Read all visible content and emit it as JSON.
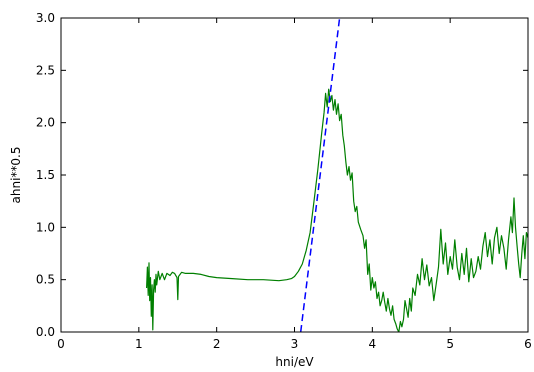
{
  "chart_data": {
    "type": "line",
    "title": "",
    "xlabel": "hni/eV",
    "ylabel": "ahni**0.5",
    "xlim": [
      0,
      6
    ],
    "ylim": [
      0,
      3.0
    ],
    "x_ticks": [
      "0",
      "1",
      "2",
      "3",
      "4",
      "5",
      "6"
    ],
    "y_ticks": [
      "0.0",
      "0.5",
      "1.0",
      "1.5",
      "2.0",
      "2.5",
      "3.0"
    ],
    "grid": false,
    "legend": "none",
    "series": [
      {
        "style": "solid",
        "color": "#007f00",
        "points": [
          [
            1.1,
            0.42
          ],
          [
            1.11,
            0.62
          ],
          [
            1.12,
            0.35
          ],
          [
            1.13,
            0.66
          ],
          [
            1.14,
            0.3
          ],
          [
            1.15,
            0.52
          ],
          [
            1.16,
            0.15
          ],
          [
            1.17,
            0.45
          ],
          [
            1.18,
            0.02
          ],
          [
            1.19,
            0.4
          ],
          [
            1.2,
            0.5
          ],
          [
            1.21,
            0.38
          ],
          [
            1.22,
            0.55
          ],
          [
            1.23,
            0.45
          ],
          [
            1.25,
            0.58
          ],
          [
            1.27,
            0.5
          ],
          [
            1.3,
            0.56
          ],
          [
            1.33,
            0.5
          ],
          [
            1.36,
            0.56
          ],
          [
            1.4,
            0.54
          ],
          [
            1.43,
            0.57
          ],
          [
            1.46,
            0.56
          ],
          [
            1.49,
            0.52
          ],
          [
            1.5,
            0.31
          ],
          [
            1.51,
            0.53
          ],
          [
            1.55,
            0.57
          ],
          [
            1.6,
            0.56
          ],
          [
            1.7,
            0.56
          ],
          [
            1.8,
            0.55
          ],
          [
            1.9,
            0.53
          ],
          [
            2.0,
            0.52
          ],
          [
            2.2,
            0.51
          ],
          [
            2.4,
            0.5
          ],
          [
            2.6,
            0.5
          ],
          [
            2.8,
            0.49
          ],
          [
            2.9,
            0.5
          ],
          [
            2.96,
            0.51
          ],
          [
            3.0,
            0.53
          ],
          [
            3.05,
            0.58
          ],
          [
            3.1,
            0.65
          ],
          [
            3.15,
            0.78
          ],
          [
            3.2,
            0.95
          ],
          [
            3.25,
            1.25
          ],
          [
            3.3,
            1.55
          ],
          [
            3.35,
            1.9
          ],
          [
            3.38,
            2.1
          ],
          [
            3.4,
            2.28
          ],
          [
            3.42,
            2.15
          ],
          [
            3.44,
            2.32
          ],
          [
            3.46,
            2.2
          ],
          [
            3.48,
            2.26
          ],
          [
            3.5,
            2.12
          ],
          [
            3.52,
            2.22
          ],
          [
            3.54,
            2.08
          ],
          [
            3.56,
            2.18
          ],
          [
            3.58,
            2.02
          ],
          [
            3.6,
            2.08
          ],
          [
            3.62,
            1.88
          ],
          [
            3.64,
            1.78
          ],
          [
            3.66,
            1.62
          ],
          [
            3.68,
            1.5
          ],
          [
            3.7,
            1.58
          ],
          [
            3.72,
            1.45
          ],
          [
            3.74,
            1.52
          ],
          [
            3.76,
            1.25
          ],
          [
            3.78,
            1.15
          ],
          [
            3.8,
            1.2
          ],
          [
            3.82,
            1.05
          ],
          [
            3.85,
            0.98
          ],
          [
            3.88,
            0.92
          ],
          [
            3.9,
            0.8
          ],
          [
            3.92,
            0.88
          ],
          [
            3.94,
            0.55
          ],
          [
            3.96,
            0.65
          ],
          [
            3.98,
            0.4
          ],
          [
            4.0,
            0.52
          ],
          [
            4.02,
            0.42
          ],
          [
            4.04,
            0.48
          ],
          [
            4.06,
            0.32
          ],
          [
            4.08,
            0.38
          ],
          [
            4.1,
            0.25
          ],
          [
            4.12,
            0.3
          ],
          [
            4.14,
            0.38
          ],
          [
            4.16,
            0.28
          ],
          [
            4.18,
            0.2
          ],
          [
            4.2,
            0.32
          ],
          [
            4.22,
            0.22
          ],
          [
            4.24,
            0.16
          ],
          [
            4.26,
            0.25
          ],
          [
            4.28,
            0.12
          ],
          [
            4.3,
            0.08
          ],
          [
            4.32,
            0.03
          ],
          [
            4.34,
            0.0
          ],
          [
            4.36,
            0.1
          ],
          [
            4.38,
            0.05
          ],
          [
            4.4,
            0.12
          ],
          [
            4.42,
            0.3
          ],
          [
            4.44,
            0.22
          ],
          [
            4.46,
            0.14
          ],
          [
            4.48,
            0.32
          ],
          [
            4.5,
            0.2
          ],
          [
            4.52,
            0.42
          ],
          [
            4.55,
            0.35
          ],
          [
            4.58,
            0.55
          ],
          [
            4.61,
            0.45
          ],
          [
            4.64,
            0.7
          ],
          [
            4.67,
            0.5
          ],
          [
            4.7,
            0.64
          ],
          [
            4.73,
            0.44
          ],
          [
            4.76,
            0.52
          ],
          [
            4.79,
            0.3
          ],
          [
            4.82,
            0.46
          ],
          [
            4.85,
            0.62
          ],
          [
            4.88,
            0.98
          ],
          [
            4.91,
            0.65
          ],
          [
            4.94,
            0.85
          ],
          [
            4.97,
            0.55
          ],
          [
            5.0,
            0.72
          ],
          [
            5.03,
            0.6
          ],
          [
            5.06,
            0.88
          ],
          [
            5.09,
            0.62
          ],
          [
            5.12,
            0.5
          ],
          [
            5.15,
            0.75
          ],
          [
            5.18,
            0.55
          ],
          [
            5.21,
            0.8
          ],
          [
            5.24,
            0.48
          ],
          [
            5.27,
            0.7
          ],
          [
            5.3,
            0.52
          ],
          [
            5.33,
            0.58
          ],
          [
            5.36,
            0.72
          ],
          [
            5.39,
            0.6
          ],
          [
            5.42,
            0.82
          ],
          [
            5.45,
            0.95
          ],
          [
            5.48,
            0.72
          ],
          [
            5.51,
            0.88
          ],
          [
            5.54,
            0.65
          ],
          [
            5.57,
            0.9
          ],
          [
            5.6,
            1.0
          ],
          [
            5.63,
            0.75
          ],
          [
            5.66,
            0.92
          ],
          [
            5.69,
            0.8
          ],
          [
            5.72,
            0.6
          ],
          [
            5.75,
            0.88
          ],
          [
            5.78,
            1.1
          ],
          [
            5.8,
            0.95
          ],
          [
            5.82,
            1.28
          ],
          [
            5.84,
            1.0
          ],
          [
            5.86,
            0.82
          ],
          [
            5.88,
            0.65
          ],
          [
            5.9,
            0.52
          ],
          [
            5.92,
            0.75
          ],
          [
            5.94,
            0.92
          ],
          [
            5.96,
            0.7
          ],
          [
            5.98,
            0.95
          ],
          [
            6.0,
            0.9
          ]
        ]
      },
      {
        "style": "dashed",
        "color": "#0000ff",
        "points": [
          [
            3.08,
            0.0
          ],
          [
            3.58,
            3.0
          ]
        ]
      }
    ]
  }
}
